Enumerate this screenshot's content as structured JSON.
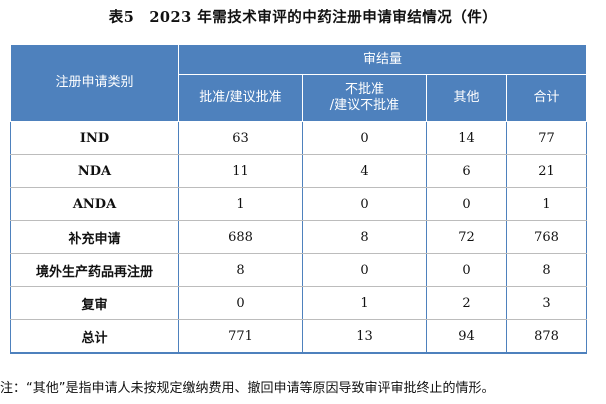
{
  "title": "表5　2023 年需技术审评的中药注册申请审结情况（件）",
  "table": {
    "category_header": "注册申请类别",
    "group_header": "审结量",
    "columns": [
      "批准/建议批准",
      "不批准\n/建议不批准",
      "其他",
      "合计"
    ],
    "rows": [
      {
        "category": "IND",
        "values": [
          "63",
          "0",
          "14",
          "77"
        ]
      },
      {
        "category": "NDA",
        "values": [
          "11",
          "4",
          "6",
          "21"
        ]
      },
      {
        "category": "ANDA",
        "values": [
          "1",
          "0",
          "0",
          "1"
        ]
      },
      {
        "category": "补充申请",
        "values": [
          "688",
          "8",
          "72",
          "768"
        ]
      },
      {
        "category": "境外生产药品再注册",
        "values": [
          "8",
          "0",
          "0",
          "8"
        ]
      },
      {
        "category": "复审",
        "values": [
          "0",
          "1",
          "2",
          "3"
        ]
      },
      {
        "category": "总计",
        "values": [
          "771",
          "13",
          "94",
          "878"
        ]
      }
    ]
  },
  "note": "注：“其他”是指申请人未按规定缴纳费用、撤回申请等原因导致审评审批终止的情形。",
  "colors": {
    "header_bg": "#4e81bd",
    "header_text": "#ffffff",
    "row_divider": "#bcbcbc"
  }
}
